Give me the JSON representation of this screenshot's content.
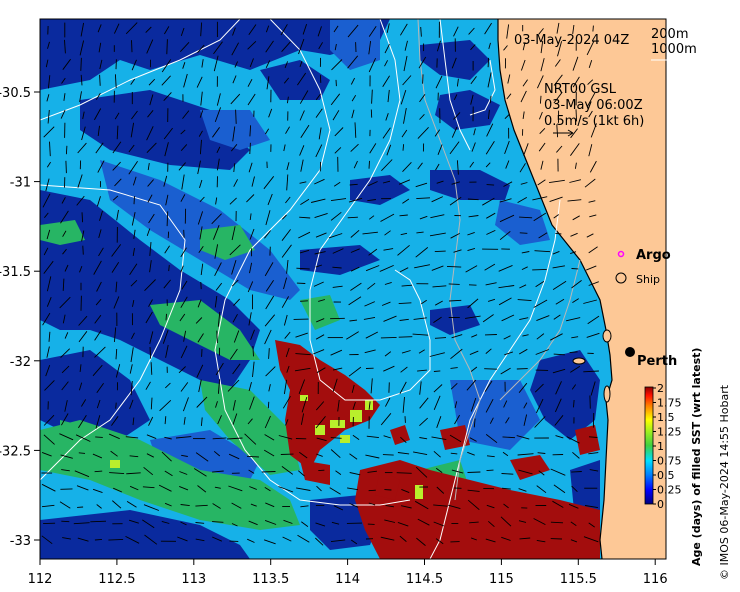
{
  "map": {
    "timestamp": "03-May-2024 04Z",
    "contour_labels": [
      "200m",
      "1000m"
    ],
    "current_model": "NRT00 GSL",
    "current_time": "03-May 06:00Z",
    "vector_scale": "0.5m/s (1kt 6h)",
    "lon_ticks": [
      "112",
      "112.5",
      "113",
      "113.5",
      "114",
      "114.5",
      "115",
      "115.5",
      "116"
    ],
    "lat_ticks": [
      "-30.5",
      "-31",
      "-31.5",
      "-32",
      "-32.5",
      "-33"
    ],
    "legend": {
      "argo": "Argo",
      "ship": "Ship"
    },
    "place": "Perth",
    "colorbar": {
      "title": "Age (days) of filled SST (wrt latest)",
      "ticks": [
        "2",
        "1.75",
        "1.5",
        "1.25",
        "1",
        "0.75",
        "0.5",
        "0.25",
        "0"
      ]
    },
    "credit": "© IMOS 06-May-2024 14:55 Hobart",
    "colors": {
      "land": "#fdc896",
      "deep_blue": "#0a2a9e",
      "blue": "#1a5fd0",
      "cyan": "#16b1e8",
      "green": "#27b564",
      "lime": "#b9ef2c",
      "dark_red": "#a30d0d",
      "argo_marker": "#ff00ff"
    }
  }
}
